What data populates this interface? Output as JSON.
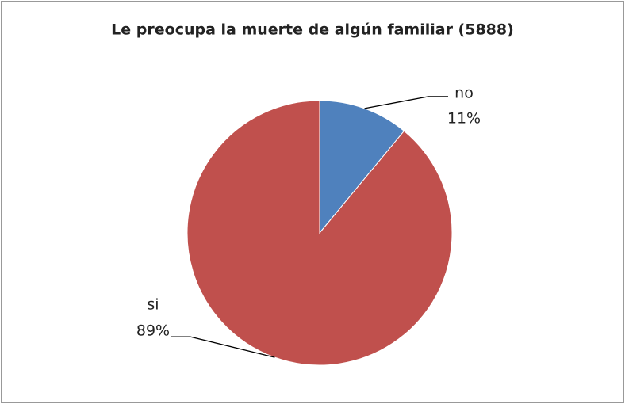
{
  "chart_data": {
    "type": "pie",
    "title": "Le preocupa la muerte de algún familiar (5888)",
    "categories": [
      "no",
      "si"
    ],
    "values": [
      11,
      89
    ],
    "value_labels": [
      "11%",
      "89%"
    ],
    "colors": [
      "#4f81bd",
      "#c0504d"
    ]
  }
}
